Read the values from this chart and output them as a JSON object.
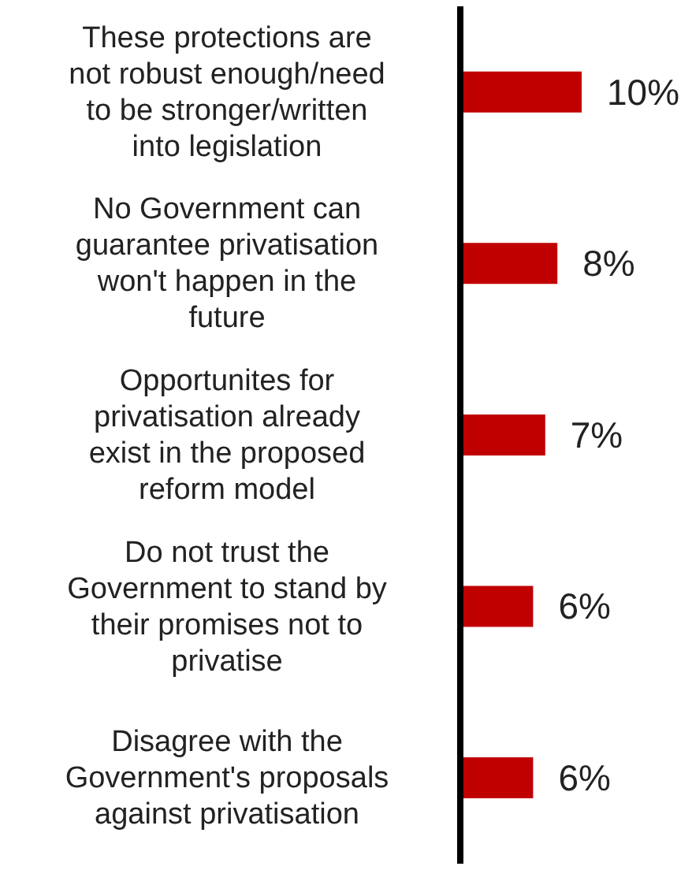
{
  "chart_data": {
    "type": "bar",
    "orientation": "horizontal",
    "categories": [
      "These protections are not robust enough/need to be stronger/written into legislation",
      "No Government can guarantee privatisation won't happen in the future",
      "Opportunites for privatisation already exist in the proposed reform model",
      "Do not trust the Government to stand by their promises not to privatise",
      "Disagree with the Government's proposals against privatisation"
    ],
    "values": [
      10,
      8,
      7,
      6,
      6
    ],
    "value_labels": [
      "10%",
      "8%",
      "7%",
      "6%",
      "6%"
    ],
    "color": "#c00000"
  }
}
